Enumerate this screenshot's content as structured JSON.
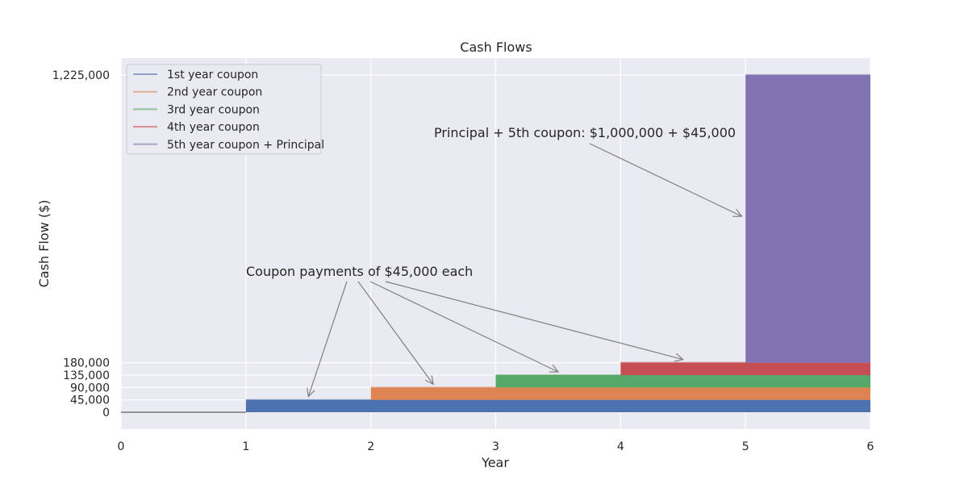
{
  "chart_data": {
    "type": "area",
    "title": "Cash Flows",
    "xlabel": "Year",
    "ylabel": "Cash Flow ($)",
    "xlim": [
      0,
      6
    ],
    "ylim": [
      -61250,
      1286250
    ],
    "x_ticks": [
      "0",
      "1",
      "2",
      "3",
      "4",
      "5",
      "6"
    ],
    "y_ticks": [
      {
        "value": 0,
        "label": "0"
      },
      {
        "value": 45000,
        "label": "45,000"
      },
      {
        "value": 90000,
        "label": "90,000"
      },
      {
        "value": 135000,
        "label": "135,000"
      },
      {
        "value": 180000,
        "label": "180,000"
      },
      {
        "value": 1225000,
        "label": "1,225,000"
      }
    ],
    "grid": true,
    "legend_position": "top-left",
    "baseline": {
      "x_start": 0,
      "x_end": 1,
      "value": 0,
      "color": "#808080"
    },
    "series": [
      {
        "name": "1st year coupon",
        "x_start": 1,
        "x_end": 6,
        "bottom": 0,
        "top": 45000,
        "color": "#4c72b0"
      },
      {
        "name": "2nd year coupon",
        "x_start": 2,
        "x_end": 6,
        "bottom": 45000,
        "top": 90000,
        "color": "#dd8452"
      },
      {
        "name": "3rd year coupon",
        "x_start": 3,
        "x_end": 6,
        "bottom": 90000,
        "top": 135000,
        "color": "#55a868"
      },
      {
        "name": "4th year coupon",
        "x_start": 4,
        "x_end": 6,
        "bottom": 135000,
        "top": 180000,
        "color": "#c44e52"
      },
      {
        "name": "5th year coupon + Principal",
        "x_start": 5,
        "x_end": 6,
        "bottom": 180000,
        "top": 1225000,
        "color": "#8172b3"
      }
    ],
    "annotations": [
      {
        "text": "Coupon payments of $45,000 each",
        "targets": [
          {
            "x": 1.5,
            "y": 45000
          },
          {
            "x": 2.5,
            "y": 90000
          },
          {
            "x": 3.5,
            "y": 135000
          },
          {
            "x": 4.5,
            "y": 180000
          }
        ]
      },
      {
        "text": "Principal + 5th coupon: $1,000,000 + $45,000",
        "targets": [
          {
            "x": 4.97,
            "y": 700000
          }
        ]
      }
    ],
    "colors": {
      "plot_background": "#eaeaf2",
      "grid": "#ffffff",
      "arrow": "#808080",
      "text": "#262626"
    }
  }
}
